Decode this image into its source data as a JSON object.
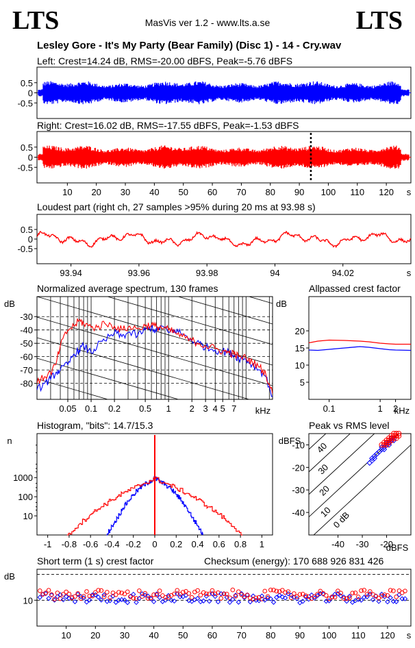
{
  "header": {
    "logo_left": "LTS",
    "logo_right": "LTS",
    "app_title": "MasVis ver 1.2 - www.lts.a.se",
    "track_title": "Lesley Gore - It's My Party (Bear Family) (Disc 1) - 14 - Cry.wav"
  },
  "colors": {
    "left": "#0000ff",
    "right": "#ff0000",
    "axis": "#000000",
    "marker": "#000000"
  },
  "left_wave": {
    "title": "Left: Crest=14.24 dB, RMS=-20.00 dBFS, Peak=-5.76 dBFS"
  },
  "right_wave": {
    "title": "Right: Crest=16.02 dB, RMS=-17.55 dBFS, Peak=-1.53 dBFS"
  },
  "loudest": {
    "title": "Loudest part (right ch, 27 samples >95% during 20 ms at 93.98 s)"
  },
  "spectrum": {
    "title": "Normalized average spectrum, 130 frames"
  },
  "allpass": {
    "title": "Allpassed crest factor"
  },
  "histogram": {
    "title": "Histogram, \"bits\": 14.7/15.3"
  },
  "peakrms": {
    "title": "Peak vs RMS level"
  },
  "shortterm": {
    "title": "Short term (1 s) crest factor",
    "checksum": "Checksum (energy):   170 688 926 831 426"
  },
  "chart_data": [
    {
      "id": "left_wave",
      "type": "area",
      "series": [
        {
          "name": "Left",
          "color": "#0000ff"
        }
      ],
      "ylim": [
        -1,
        1
      ],
      "yticks": [
        "0.5",
        "0",
        "-0.5"
      ],
      "yticks_v": [
        0.5,
        0,
        -0.5
      ],
      "xlim": [
        0,
        128
      ],
      "envelope_upper": 0.4,
      "envelope_lower": -0.4
    },
    {
      "id": "right_wave",
      "type": "area",
      "series": [
        {
          "name": "Right",
          "color": "#ff0000"
        }
      ],
      "ylim": [
        -1,
        1
      ],
      "yticks": [
        "0.5",
        "0",
        "-0.5"
      ],
      "yticks_v": [
        0.5,
        0,
        -0.5
      ],
      "xlim": [
        0,
        128
      ],
      "marker_x": 93.98,
      "xticks": [
        "10",
        "20",
        "30",
        "40",
        "50",
        "60",
        "70",
        "80",
        "90",
        "100",
        "110",
        "120"
      ],
      "xticks_v": [
        10,
        20,
        30,
        40,
        50,
        60,
        70,
        80,
        90,
        100,
        110,
        120
      ],
      "xunit": "s"
    },
    {
      "id": "loudest",
      "type": "line",
      "series": [
        {
          "name": "Right",
          "color": "#ff0000"
        }
      ],
      "ylim": [
        -1,
        1
      ],
      "yticks": [
        "0.5",
        "0",
        "-0.5"
      ],
      "yticks_v": [
        0.5,
        0,
        -0.5
      ],
      "xlim": [
        93.93,
        94.04
      ],
      "xticks": [
        "93.94",
        "93.96",
        "93.98",
        "94",
        "94.02"
      ],
      "xticks_v": [
        93.94,
        93.96,
        93.98,
        94.0,
        94.02
      ],
      "xunit": "s"
    },
    {
      "id": "spectrum",
      "type": "line",
      "ylabel": "dB",
      "xunit": "kHz",
      "xlim": [
        0.02,
        22
      ],
      "ylim": [
        -92,
        -15
      ],
      "xscale": "log",
      "yticks": [
        "-30",
        "-40",
        "-50",
        "-60",
        "-70",
        "-80"
      ],
      "yticks_v": [
        -30,
        -40,
        -50,
        -60,
        -70,
        -80
      ],
      "xticks": [
        "0.05",
        "0.1",
        "0.2",
        "0.5",
        "1",
        "2",
        "3",
        "4",
        "5",
        "7"
      ],
      "xticks_v": [
        0.05,
        0.1,
        0.2,
        0.5,
        1,
        2,
        3,
        4,
        5,
        7
      ],
      "series": [
        {
          "name": "Left",
          "color": "#0000ff",
          "x": [
            0.02,
            0.025,
            0.03,
            0.035,
            0.04,
            0.05,
            0.06,
            0.07,
            0.08,
            0.1,
            0.12,
            0.15,
            0.2,
            0.25,
            0.3,
            0.4,
            0.5,
            0.6,
            0.7,
            0.8,
            1,
            1.2,
            1.5,
            2,
            2.5,
            3,
            4,
            5,
            6,
            7,
            8,
            10,
            12,
            15,
            18,
            22
          ],
          "y": [
            -85,
            -80,
            -77,
            -72,
            -70,
            -66,
            -58,
            -55,
            -52,
            -57,
            -52,
            -48,
            -42,
            -45,
            -42,
            -44,
            -40,
            -38,
            -41,
            -37,
            -42,
            -40,
            -43,
            -48,
            -50,
            -53,
            -55,
            -56,
            -57,
            -59,
            -61,
            -62,
            -66,
            -70,
            -75,
            -90
          ]
        },
        {
          "name": "Right",
          "color": "#ff0000",
          "x": [
            0.02,
            0.025,
            0.03,
            0.035,
            0.04,
            0.05,
            0.06,
            0.07,
            0.08,
            0.1,
            0.12,
            0.15,
            0.2,
            0.25,
            0.3,
            0.4,
            0.5,
            0.6,
            0.7,
            0.8,
            1,
            1.2,
            1.5,
            2,
            2.5,
            3,
            4,
            5,
            6,
            7,
            8,
            10,
            12,
            15,
            18,
            22
          ],
          "y": [
            -80,
            -75,
            -72,
            -66,
            -52,
            -40,
            -37,
            -33,
            -35,
            -38,
            -38,
            -35,
            -37,
            -40,
            -38,
            -39,
            -37,
            -36,
            -38,
            -38,
            -40,
            -42,
            -45,
            -48,
            -50,
            -52,
            -54,
            -56,
            -57,
            -58,
            -60,
            -61,
            -64,
            -68,
            -73,
            -88
          ]
        }
      ]
    },
    {
      "id": "allpass",
      "type": "line",
      "ylabel": "dB",
      "xunit": "kHz",
      "xscale": "log",
      "xlim": [
        0.04,
        4
      ],
      "ylim": [
        0,
        30
      ],
      "yticks": [
        "20",
        "15",
        "10",
        "5"
      ],
      "yticks_v": [
        20,
        15,
        10,
        5
      ],
      "xticks": [
        "0.1",
        "1",
        "2"
      ],
      "xticks_v": [
        0.1,
        1,
        2
      ],
      "series": [
        {
          "name": "Left",
          "color": "#0000ff",
          "x": [
            0.04,
            0.06,
            0.1,
            0.2,
            0.4,
            0.6,
            1,
            1.5,
            2,
            4
          ],
          "y": [
            14.4,
            14.3,
            14.6,
            15.0,
            15.4,
            15.2,
            14.8,
            14.5,
            14.4,
            14.3
          ]
        },
        {
          "name": "Right",
          "color": "#ff0000",
          "x": [
            0.04,
            0.06,
            0.1,
            0.2,
            0.4,
            0.6,
            1,
            1.5,
            2,
            4
          ],
          "y": [
            16.5,
            17.0,
            17.3,
            17.2,
            17.0,
            16.8,
            16.4,
            16.2,
            16.1,
            16.1
          ]
        }
      ]
    },
    {
      "id": "histogram",
      "type": "line",
      "ylabel": "n",
      "yscale": "log",
      "xlim": [
        -1.1,
        1.1
      ],
      "ylim": [
        1,
        200000
      ],
      "yticks": [
        "1000",
        "100",
        "10"
      ],
      "yticks_v": [
        1000,
        100,
        10
      ],
      "xticks": [
        "-1",
        "-0.8",
        "-0.6",
        "-0.4",
        "-0.2",
        "0",
        "0.2",
        "0.4",
        "0.6",
        "0.8",
        "1"
      ],
      "xticks_v": [
        -1,
        -0.8,
        -0.6,
        -0.4,
        -0.2,
        0,
        0.2,
        0.4,
        0.6,
        0.8,
        1
      ],
      "series": [
        {
          "name": "Left",
          "color": "#0000ff",
          "x": [
            -0.45,
            -0.4,
            -0.35,
            -0.3,
            -0.25,
            -0.2,
            -0.15,
            -0.1,
            -0.05,
            0,
            0.05,
            0.1,
            0.15,
            0.2,
            0.25,
            0.3,
            0.35,
            0.4,
            0.45
          ],
          "y": [
            1,
            3,
            8,
            25,
            60,
            130,
            260,
            420,
            620,
            900,
            620,
            420,
            260,
            130,
            60,
            25,
            8,
            3,
            1
          ]
        },
        {
          "name": "Right",
          "color": "#ff0000",
          "x": [
            -0.82,
            -0.7,
            -0.6,
            -0.5,
            -0.4,
            -0.3,
            -0.2,
            -0.1,
            0,
            0.1,
            0.2,
            0.3,
            0.4,
            0.5,
            0.6,
            0.7,
            0.82
          ],
          "y": [
            1,
            4,
            12,
            30,
            70,
            150,
            280,
            500,
            900,
            500,
            280,
            150,
            70,
            30,
            12,
            4,
            1
          ]
        }
      ]
    },
    {
      "id": "peakrms",
      "type": "scatter",
      "ylabel": "dBFS",
      "xunit": "dBFS",
      "xlim": [
        -52,
        -10
      ],
      "ylim": [
        -50,
        -5
      ],
      "yticks": [
        "-10",
        "-20",
        "-30",
        "-40"
      ],
      "yticks_v": [
        -10,
        -20,
        -30,
        -40
      ],
      "xticks": [
        "-40",
        "-30",
        "-20"
      ],
      "xticks_v": [
        -40,
        -30,
        -20
      ],
      "diagonal_labels": [
        "40",
        "30",
        "20",
        "10",
        "0 dB"
      ],
      "diagonal_offsets": [
        40,
        30,
        20,
        10,
        0
      ],
      "series": [
        {
          "name": "Left",
          "color": "#0000ff",
          "x": [
            -27,
            -26,
            -25,
            -24,
            -23,
            -22,
            -21,
            -20,
            -19,
            -18,
            -25,
            -23,
            -21,
            -19,
            -22,
            -20,
            -24,
            -18,
            -26,
            -17
          ],
          "y": [
            -18,
            -17,
            -15,
            -14,
            -13,
            -12,
            -11,
            -10,
            -9,
            -8,
            -16,
            -13,
            -12,
            -10,
            -11,
            -9,
            -14,
            -7,
            -16,
            -8
          ]
        },
        {
          "name": "Right",
          "color": "#ff0000",
          "x": [
            -22,
            -21,
            -20,
            -19,
            -18,
            -17,
            -16,
            -15,
            -20,
            -18,
            -16,
            -19,
            -17,
            -21,
            -15,
            -18,
            -17,
            -20,
            -16,
            -19
          ],
          "y": [
            -10,
            -9,
            -8,
            -7,
            -6,
            -6,
            -5,
            -5,
            -9,
            -7,
            -6,
            -8,
            -5,
            -10,
            -6,
            -8,
            -7,
            -10,
            -7,
            -9
          ]
        }
      ]
    },
    {
      "id": "shortterm",
      "type": "scatter",
      "ylabel": "dB",
      "xunit": "s",
      "xlim": [
        0,
        128
      ],
      "ylim": [
        0,
        22
      ],
      "yticks": [
        "10"
      ],
      "yticks_v": [
        10
      ],
      "dashed_y": [
        10,
        20
      ],
      "xticks": [
        "10",
        "20",
        "30",
        "40",
        "50",
        "60",
        "70",
        "80",
        "90",
        "100",
        "110",
        "120"
      ],
      "xticks_v": [
        10,
        20,
        30,
        40,
        50,
        60,
        70,
        80,
        90,
        100,
        110,
        120
      ],
      "series": [
        {
          "name": "Left",
          "color": "#0000ff",
          "mean": 10.8,
          "spread": 1.8
        },
        {
          "name": "Right",
          "color": "#ff0000",
          "mean": 12.2,
          "spread": 1.8
        }
      ]
    }
  ]
}
